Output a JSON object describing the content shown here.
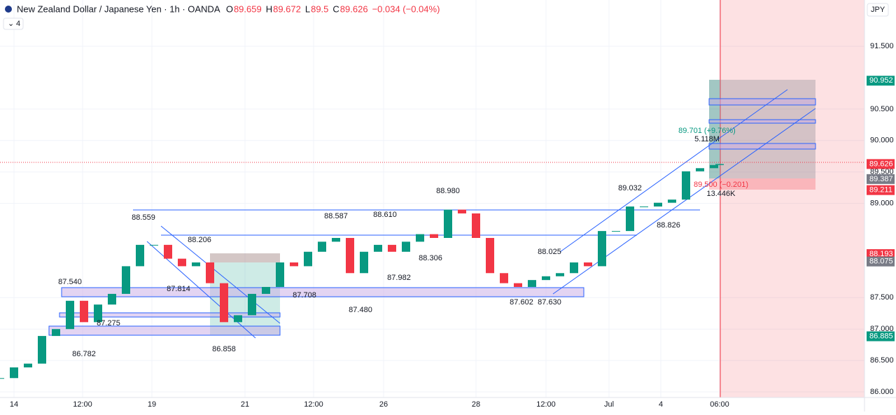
{
  "chart_data": {
    "type": "candlestick",
    "title": "New Zealand Dollar / Japanese Yen · 1h · OANDA",
    "ohlc_labels": {
      "open_label": "O",
      "open": 89.659,
      "high_label": "H",
      "high": 89.672,
      "low_label": "L",
      "low": 89.5,
      "close_label": "C",
      "close": 89.626,
      "change": "−0.034 (−0.04%)"
    },
    "indicator_count": "4",
    "currency": "JPY",
    "x": [
      0,
      4,
      8,
      12,
      16,
      20,
      24,
      28,
      32,
      36,
      40,
      44,
      48,
      52,
      56,
      60,
      64,
      68,
      72,
      76,
      80,
      84,
      88,
      92,
      96,
      100,
      104,
      108,
      112,
      116,
      120,
      124,
      128,
      132,
      136,
      140,
      144,
      148,
      152,
      156,
      160,
      164,
      168,
      172,
      176,
      180,
      184,
      188,
      192,
      196,
      200,
      204,
      205.6
    ],
    "values": [
      86.22,
      86.39,
      86.45,
      86.89,
      87.0,
      87.45,
      87.11,
      87.39,
      87.56,
      88.0,
      88.34,
      88.34,
      88.12,
      88.0,
      88.06,
      87.73,
      87.11,
      87.22,
      87.56,
      87.67,
      88.06,
      88.0,
      88.23,
      88.39,
      88.45,
      87.89,
      88.23,
      88.34,
      88.23,
      88.39,
      88.51,
      88.45,
      88.9,
      88.84,
      88.45,
      87.89,
      87.73,
      87.67,
      87.78,
      87.84,
      87.89,
      88.06,
      88.0,
      88.56,
      88.56,
      88.95,
      88.95,
      89.01,
      89.06,
      89.51,
      89.56,
      89.61,
      89.626
    ],
    "up_color": "#089981",
    "down_color": "#f23645",
    "xlim": [
      0,
      247
    ],
    "xticks": [
      {
        "value": 4,
        "label": "14"
      },
      {
        "value": 23.6,
        "label": "12:00"
      },
      {
        "value": 43.4,
        "label": "19"
      },
      {
        "value": 70,
        "label": "21"
      },
      {
        "value": 89.6,
        "label": "12:00"
      },
      {
        "value": 109.6,
        "label": "26"
      },
      {
        "value": 136,
        "label": "28"
      },
      {
        "value": 156,
        "label": "12:00"
      },
      {
        "value": 174,
        "label": "Jul"
      },
      {
        "value": 188.8,
        "label": "4"
      },
      {
        "value": 205.6,
        "label": "06:00"
      }
    ],
    "ylim": [
      85.911,
      92.236
    ],
    "yticks": [
      {
        "value": 86,
        "label": "86.000"
      },
      {
        "value": 86.5,
        "label": "86.500"
      },
      {
        "value": 87,
        "label": "87.000"
      },
      {
        "value": 87.5,
        "label": "87.500"
      },
      {
        "value": 89,
        "label": "89.000"
      },
      {
        "value": 89.5,
        "label": "89.500"
      },
      {
        "value": 90,
        "label": "90.000"
      },
      {
        "value": 90.5,
        "label": "90.500"
      },
      {
        "value": 91.5,
        "label": "91.500"
      }
    ],
    "price_badges": [
      {
        "value": 90.952,
        "color": "#089981"
      },
      {
        "value": 89.626,
        "color": "#f23645"
      },
      {
        "value": 89.387,
        "color": "#787b86"
      },
      {
        "value": 89.211,
        "color": "#f23645"
      },
      {
        "value": 88.193,
        "color": "#f23645"
      },
      {
        "value": 88.075,
        "color": "#787b86"
      },
      {
        "value": 86.885,
        "color": "#089981"
      }
    ],
    "annotations": [
      {
        "label": "88.559",
        "x": 41,
        "y": 88.773
      },
      {
        "label": "88.206",
        "x": 57,
        "y": 88.416
      },
      {
        "label": "87.814",
        "x": 51,
        "y": 87.637
      },
      {
        "label": "87.540",
        "x": 20,
        "y": 87.748
      },
      {
        "label": "87.275",
        "x": 31,
        "y": 87.091
      },
      {
        "label": "86.782",
        "x": 24,
        "y": 86.601
      },
      {
        "label": "86.858",
        "x": 64,
        "y": 86.679
      },
      {
        "label": "87.708",
        "x": 87,
        "y": 87.537
      },
      {
        "label": "88.587",
        "x": 96,
        "y": 88.795
      },
      {
        "label": "88.610",
        "x": 110,
        "y": 88.817
      },
      {
        "label": "88.980",
        "x": 128,
        "y": 89.196
      },
      {
        "label": "88.306",
        "x": 123,
        "y": 88.127
      },
      {
        "label": "87.982",
        "x": 114,
        "y": 87.815
      },
      {
        "label": "87.480",
        "x": 103,
        "y": 87.303
      },
      {
        "label": "87.602",
        "x": 149,
        "y": 87.425
      },
      {
        "label": "87.630",
        "x": 157,
        "y": 87.425
      },
      {
        "label": "88.025",
        "x": 157,
        "y": 88.227
      },
      {
        "label": "89.032",
        "x": 180,
        "y": 89.241
      },
      {
        "label": "88.826",
        "x": 191,
        "y": 88.65
      },
      {
        "label": "89.701 (+9.76%)",
        "x": 202,
        "y": 90.154
      },
      {
        "label": "5.118M",
        "x": 202,
        "y": 90.02
      },
      {
        "label": "89.500 (−0.201)",
        "x": 206,
        "y": 89.296
      },
      {
        "label": "13.446K",
        "x": 206,
        "y": 89.151
      }
    ]
  }
}
